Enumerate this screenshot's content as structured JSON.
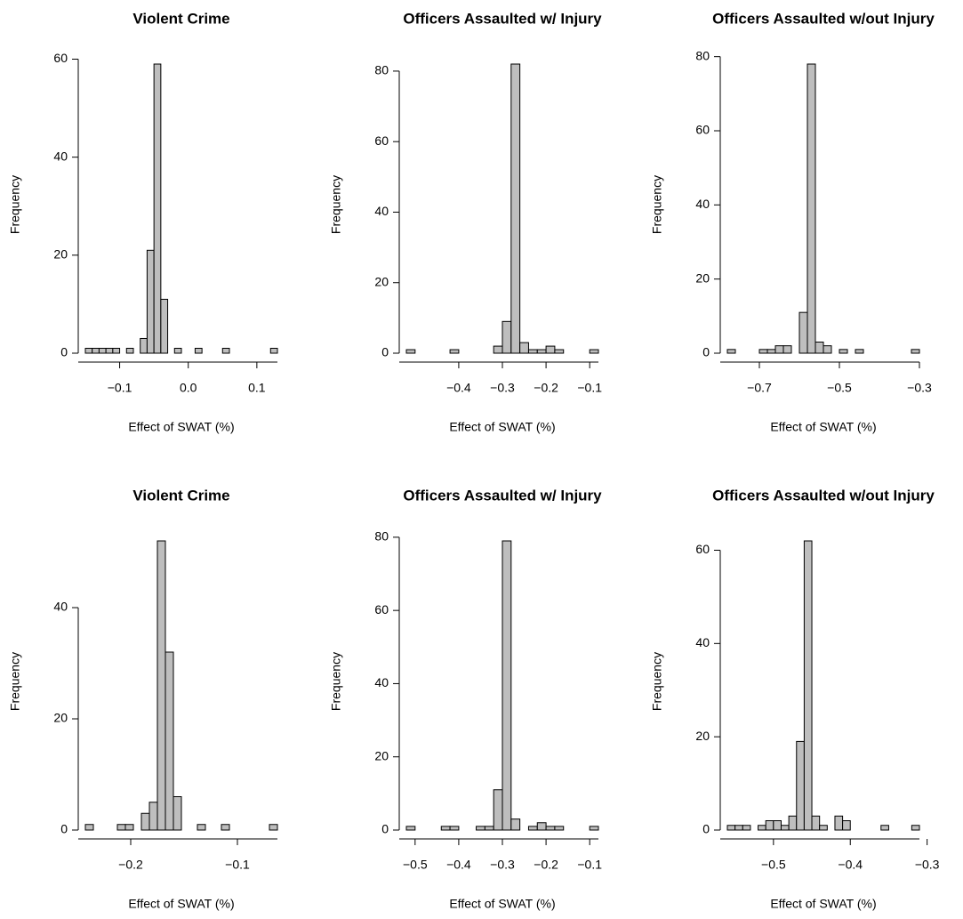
{
  "chart_data": [
    {
      "type": "histogram",
      "title": "Violent Crime",
      "xlabel": "Effect of SWAT (%)",
      "ylabel": "Frequency",
      "color": "#bebebe",
      "bins": [
        -0.15,
        -0.14,
        -0.13,
        -0.12,
        -0.11,
        -0.1,
        -0.09,
        -0.08,
        -0.07,
        -0.06,
        -0.05,
        -0.04,
        -0.03,
        -0.02,
        -0.01,
        0.0,
        0.01,
        0.02,
        0.03,
        0.04,
        0.05,
        0.06,
        0.07,
        0.08,
        0.09,
        0.1,
        0.11,
        0.12,
        0.13
      ],
      "values": [
        1,
        1,
        1,
        1,
        1,
        0,
        1,
        0,
        3,
        21,
        59,
        11,
        0,
        1,
        0,
        0,
        1,
        0,
        0,
        0,
        1,
        0,
        0,
        0,
        0,
        0,
        0,
        1
      ],
      "xlim": [
        -0.15,
        0.13
      ],
      "ylim": [
        0,
        59
      ],
      "xticks": [
        {
          "value": -0.1,
          "label": "−0.1"
        },
        {
          "value": 0,
          "label": "0.0"
        },
        0.1
      ],
      "yticks": [
        0,
        20,
        40,
        60
      ]
    },
    {
      "type": "histogram",
      "title": "Officers Assaulted w/ Injury",
      "xlabel": "Effect of SWAT (%)",
      "ylabel": "Frequency",
      "color": "#bebebe",
      "bins": [
        -0.52,
        -0.5,
        -0.48,
        -0.46,
        -0.44,
        -0.42,
        -0.4,
        -0.38,
        -0.36,
        -0.34,
        -0.32,
        -0.3,
        -0.28,
        -0.26,
        -0.24,
        -0.22,
        -0.2,
        -0.18,
        -0.16,
        -0.14,
        -0.12,
        -0.1,
        -0.08
      ],
      "values": [
        1,
        0,
        0,
        0,
        0,
        1,
        0,
        0,
        0,
        0,
        2,
        9,
        82,
        3,
        1,
        1,
        2,
        1,
        0,
        0,
        0,
        1
      ],
      "xlim": [
        -0.52,
        -0.08
      ],
      "ylim": [
        0,
        82
      ],
      "xticks": [
        {
          "value": -0.4,
          "label": "−0.4"
        },
        {
          "value": -0.3,
          "label": "−0.3"
        },
        {
          "value": -0.2,
          "label": "−0.2"
        },
        {
          "value": -0.1,
          "label": "−0.1"
        }
      ],
      "yticks": [
        0,
        20,
        40,
        60,
        80
      ]
    },
    {
      "type": "histogram",
      "title": "Officers Assaulted w/out Injury",
      "xlabel": "Effect of SWAT (%)",
      "ylabel": "Frequency",
      "color": "#bebebe",
      "bins": [
        -0.78,
        -0.76,
        -0.74,
        -0.72,
        -0.7,
        -0.68,
        -0.66,
        -0.64,
        -0.62,
        -0.6,
        -0.58,
        -0.56,
        -0.54,
        -0.52,
        -0.5,
        -0.48,
        -0.46,
        -0.44,
        -0.42,
        -0.4,
        -0.38,
        -0.36,
        -0.34,
        -0.32,
        -0.3
      ],
      "values": [
        1,
        0,
        0,
        0,
        1,
        1,
        2,
        2,
        0,
        11,
        78,
        3,
        2,
        0,
        1,
        0,
        1,
        0,
        0,
        0,
        0,
        0,
        0,
        1
      ],
      "xlim": [
        -0.78,
        -0.3
      ],
      "ylim": [
        0,
        78
      ],
      "xticks": [
        {
          "value": -0.7,
          "label": "−0.7"
        },
        {
          "value": -0.5,
          "label": "−0.5"
        },
        {
          "value": -0.3,
          "label": "−0.3"
        }
      ],
      "yticks": [
        0,
        20,
        40,
        60,
        80
      ]
    },
    {
      "type": "histogram",
      "title": "Violent Crime",
      "xlabel": "Effect of SWAT (%)",
      "ylabel": "Frequency",
      "color": "#bebebe",
      "bins": [
        -0.2425,
        -0.235,
        -0.2275,
        -0.22,
        -0.2125,
        -0.205,
        -0.1975,
        -0.19,
        -0.1825,
        -0.175,
        -0.1675,
        -0.16,
        -0.1525,
        -0.145,
        -0.1375,
        -0.13,
        -0.1225,
        -0.115,
        -0.1075,
        -0.1,
        -0.0925,
        -0.085,
        -0.0775,
        -0.07,
        -0.0625
      ],
      "values": [
        1,
        0,
        0,
        0,
        1,
        1,
        0,
        3,
        5,
        52,
        32,
        6,
        0,
        0,
        1,
        0,
        0,
        1,
        0,
        0,
        0,
        0,
        0,
        1
      ],
      "xlim": [
        -0.2425,
        -0.0625
      ],
      "ylim": [
        0,
        52
      ],
      "xticks": [
        {
          "value": -0.2,
          "label": "−0.2"
        },
        {
          "value": -0.1,
          "label": "−0.1"
        }
      ],
      "yticks": [
        0,
        20,
        40
      ]
    },
    {
      "type": "histogram",
      "title": "Officers Assaulted w/ Injury",
      "xlabel": "Effect of SWAT (%)",
      "ylabel": "Frequency",
      "color": "#bebebe",
      "bins": [
        -0.52,
        -0.5,
        -0.48,
        -0.46,
        -0.44,
        -0.42,
        -0.4,
        -0.38,
        -0.36,
        -0.34,
        -0.32,
        -0.3,
        -0.28,
        -0.26,
        -0.24,
        -0.22,
        -0.2,
        -0.18,
        -0.16,
        -0.14,
        -0.12,
        -0.1,
        -0.08
      ],
      "values": [
        1,
        0,
        0,
        0,
        1,
        1,
        0,
        0,
        1,
        1,
        11,
        79,
        3,
        0,
        1,
        2,
        1,
        1,
        0,
        0,
        0,
        1
      ],
      "xlim": [
        -0.52,
        -0.08
      ],
      "ylim": [
        0,
        79
      ],
      "xticks": [
        {
          "value": -0.5,
          "label": "−0.5"
        },
        {
          "value": -0.4,
          "label": "−0.4"
        },
        {
          "value": -0.3,
          "label": "−0.3"
        },
        {
          "value": -0.2,
          "label": "−0.2"
        },
        {
          "value": -0.1,
          "label": "−0.1"
        }
      ],
      "yticks": [
        0,
        20,
        40,
        60,
        80
      ]
    },
    {
      "type": "histogram",
      "title": "Officers Assaulted w/out Injury",
      "xlabel": "Effect of SWAT (%)",
      "ylabel": "Frequency",
      "color": "#bebebe",
      "bins": [
        -0.56,
        -0.55,
        -0.54,
        -0.53,
        -0.52,
        -0.51,
        -0.5,
        -0.49,
        -0.48,
        -0.47,
        -0.46,
        -0.45,
        -0.44,
        -0.43,
        -0.42,
        -0.41,
        -0.4,
        -0.39,
        -0.38,
        -0.37,
        -0.36,
        -0.35,
        -0.34,
        -0.33,
        -0.32,
        -0.31
      ],
      "values": [
        1,
        1,
        1,
        0,
        1,
        2,
        2,
        1,
        3,
        19,
        62,
        3,
        1,
        0,
        3,
        2,
        0,
        0,
        0,
        0,
        1,
        0,
        0,
        0,
        1
      ],
      "xlim": [
        -0.56,
        -0.31
      ],
      "ylim": [
        0,
        62
      ],
      "xticks": [
        {
          "value": -0.5,
          "label": "−0.5"
        },
        {
          "value": -0.4,
          "label": "−0.4"
        },
        {
          "value": -0.3,
          "label": "−0.3"
        }
      ],
      "yticks": [
        0,
        20,
        40,
        60
      ]
    }
  ]
}
